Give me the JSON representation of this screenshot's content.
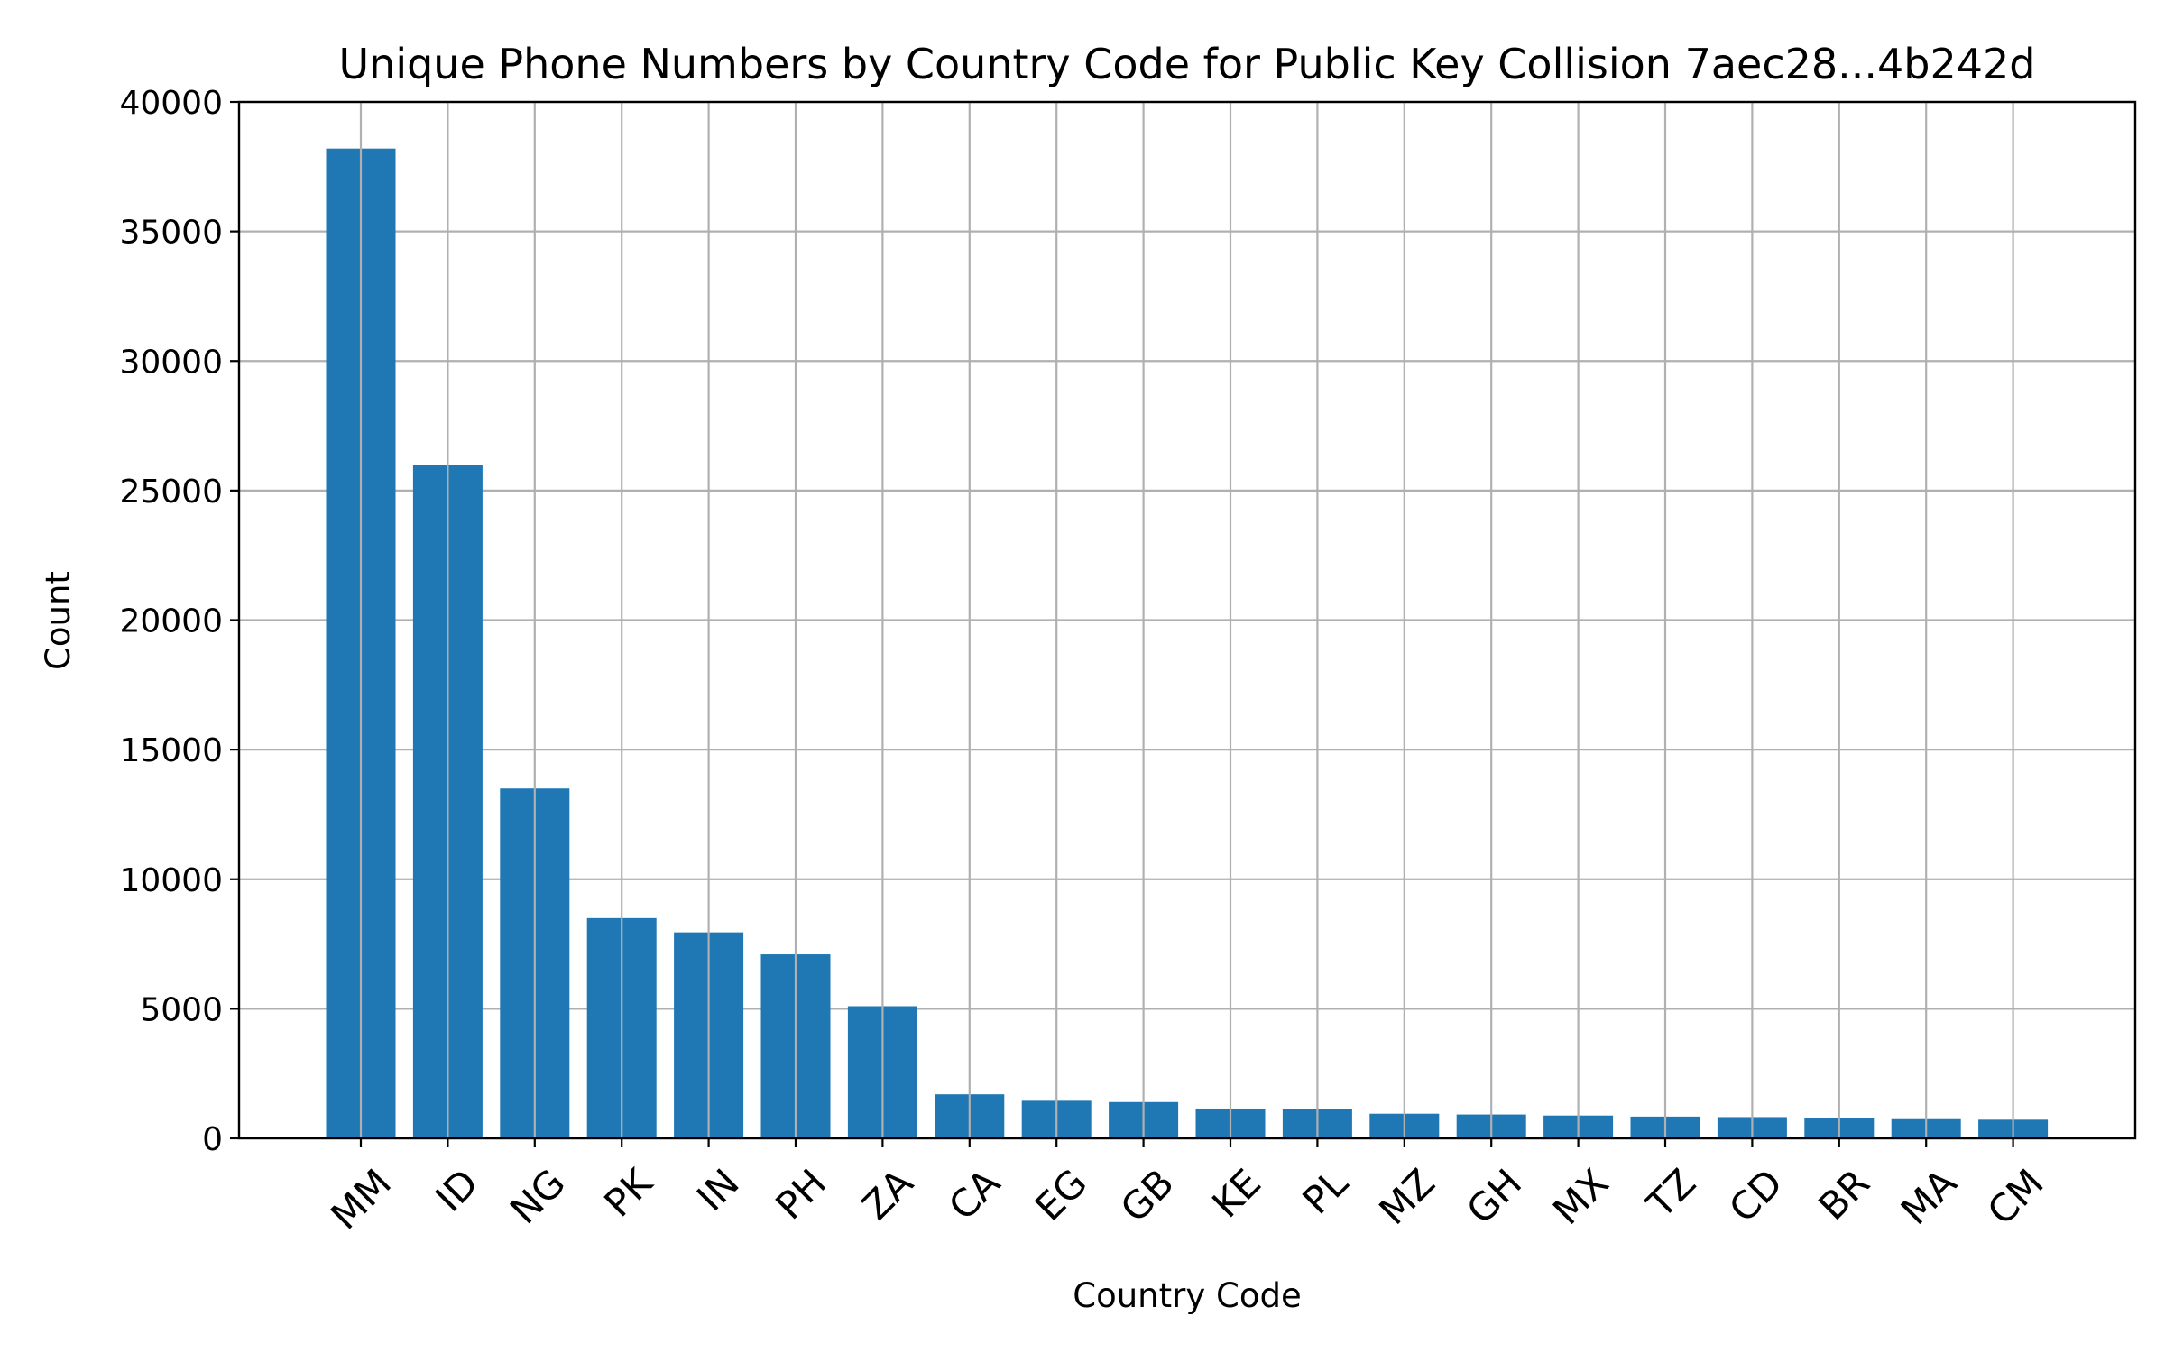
{
  "chart_data": {
    "type": "bar",
    "title": "Unique Phone Numbers by Country Code for Public Key Collision 7aec28...4b242d",
    "xlabel": "Country Code",
    "ylabel": "Count",
    "categories": [
      "MM",
      "ID",
      "NG",
      "PK",
      "IN",
      "PH",
      "ZA",
      "CA",
      "EG",
      "GB",
      "KE",
      "PL",
      "MZ",
      "GH",
      "MX",
      "TZ",
      "CD",
      "BR",
      "MA",
      "CM"
    ],
    "values": [
      38200,
      26000,
      13500,
      8500,
      7950,
      7100,
      5100,
      1700,
      1450,
      1400,
      1150,
      1120,
      950,
      920,
      880,
      840,
      820,
      780,
      740,
      720
    ],
    "ylim": [
      0,
      40000
    ],
    "yticks": [
      0,
      5000,
      10000,
      15000,
      20000,
      25000,
      30000,
      35000,
      40000
    ],
    "ytick_labels": [
      "0",
      "5000",
      "10000",
      "15000",
      "20000",
      "25000",
      "30000",
      "35000",
      "40000"
    ],
    "grid": true,
    "bar_color": "#1f77b4",
    "grid_color": "#b0b0b0"
  }
}
